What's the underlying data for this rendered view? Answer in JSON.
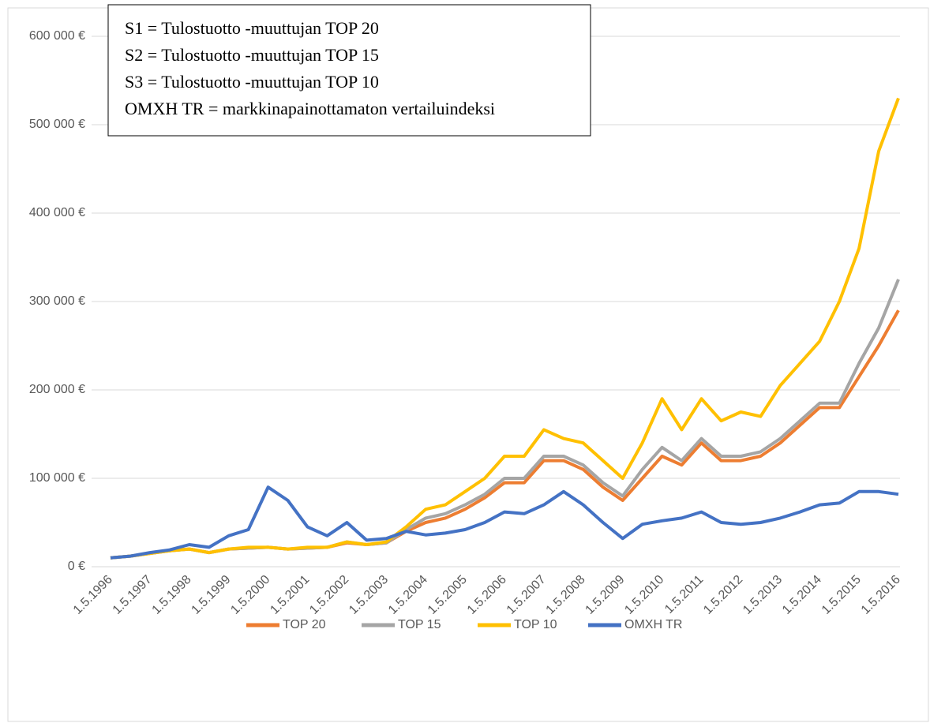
{
  "chart_data": {
    "type": "line",
    "annotations": [
      "S1 = Tulostuotto -muuttujan TOP 20",
      "S2 = Tulostuotto -muuttujan TOP 15",
      "S3 = Tulostuotto -muuttujan TOP 10",
      "OMXH TR = markkinapainottamaton vertailuindeksi"
    ],
    "categories": [
      "1.5.1996",
      null,
      "1.5.1997",
      null,
      "1.5.1998",
      null,
      "1.5.1999",
      null,
      "1.5.2000",
      null,
      "1.5.2001",
      null,
      "1.5.2002",
      null,
      "1.5.2003",
      null,
      "1.5.2004",
      null,
      "1.5.2005",
      null,
      "1.5.2006",
      null,
      "1.5.2007",
      null,
      "1.5.2008",
      null,
      "1.5.2009",
      null,
      "1.5.2010",
      null,
      "1.5.2011",
      null,
      "1.5.2012",
      null,
      "1.5.2013",
      null,
      "1.5.2014",
      null,
      "1.5.2015",
      null,
      "1.5.2016"
    ],
    "series": [
      {
        "name": "TOP 20",
        "color": "#ed7d31",
        "values": [
          10000,
          12000,
          15000,
          18000,
          20000,
          16000,
          20000,
          21000,
          22000,
          20000,
          21000,
          22000,
          27000,
          25000,
          27000,
          40000,
          50000,
          55000,
          65000,
          78000,
          95000,
          95000,
          120000,
          120000,
          110000,
          90000,
          75000,
          100000,
          125000,
          115000,
          140000,
          120000,
          120000,
          125000,
          140000,
          160000,
          180000,
          180000,
          215000,
          250000,
          290000
        ]
      },
      {
        "name": "TOP 15",
        "color": "#a5a5a5",
        "values": [
          10000,
          12000,
          15000,
          18000,
          20000,
          16000,
          20000,
          21000,
          22000,
          20000,
          21000,
          22000,
          28000,
          25000,
          27000,
          42000,
          55000,
          60000,
          70000,
          82000,
          100000,
          100000,
          125000,
          125000,
          115000,
          95000,
          80000,
          110000,
          135000,
          120000,
          145000,
          125000,
          125000,
          130000,
          145000,
          165000,
          185000,
          185000,
          230000,
          270000,
          325000
        ]
      },
      {
        "name": "TOP 10",
        "color": "#ffc000",
        "values": [
          10000,
          12000,
          15000,
          18000,
          20000,
          16000,
          20000,
          22000,
          22000,
          20000,
          22000,
          22000,
          28000,
          25000,
          28000,
          45000,
          65000,
          70000,
          85000,
          100000,
          125000,
          125000,
          155000,
          145000,
          140000,
          120000,
          100000,
          140000,
          190000,
          155000,
          190000,
          165000,
          175000,
          170000,
          205000,
          230000,
          255000,
          300000,
          360000,
          470000,
          530000
        ]
      },
      {
        "name": "OMXH TR",
        "color": "#4472c4",
        "values": [
          10000,
          12000,
          16000,
          19000,
          25000,
          22000,
          35000,
          42000,
          90000,
          75000,
          45000,
          35000,
          50000,
          30000,
          32000,
          40000,
          36000,
          38000,
          42000,
          50000,
          62000,
          60000,
          70000,
          85000,
          70000,
          50000,
          32000,
          48000,
          52000,
          55000,
          62000,
          50000,
          48000,
          50000,
          55000,
          62000,
          70000,
          72000,
          85000,
          85000,
          82000
        ]
      }
    ],
    "ylim": [
      0,
      600000
    ],
    "yticks": [
      {
        "value": 0,
        "label": "0 €"
      },
      {
        "value": 100000,
        "label": "100 000 €"
      },
      {
        "value": 200000,
        "label": "200 000 €"
      },
      {
        "value": 300000,
        "label": "300 000 €"
      },
      {
        "value": 400000,
        "label": "400 000 €"
      },
      {
        "value": 500000,
        "label": "500 000 €"
      },
      {
        "value": 600000,
        "label": "600 000 €"
      }
    ],
    "grid": true,
    "legend": "bottom"
  }
}
